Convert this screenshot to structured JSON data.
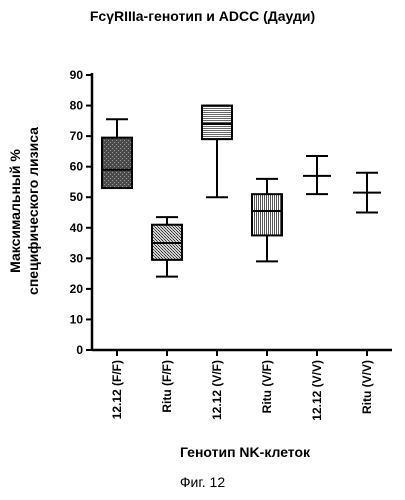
{
  "chart_data": {
    "type": "box",
    "title": "FcγRIIIa-генотип и ADCC (Дауди)",
    "ylabel_lines": [
      "Максимальный %",
      "специфического лизиса"
    ],
    "xlabel": "Генотип NK-клеток",
    "ylim": [
      0,
      90
    ],
    "yticks": [
      0,
      10,
      20,
      30,
      40,
      50,
      60,
      70,
      80,
      90
    ],
    "categories": [
      "12.12 (F/F)",
      "Ritu (F/F)",
      "12.12 (V/F)",
      "Ritu (V/F)",
      "12.12 (V/V)",
      "Ritu (V/V)"
    ],
    "boxes": [
      {
        "min": 53,
        "q1": 53,
        "median": 59,
        "q3": 69.5,
        "max": 75.5,
        "fill": "#555555"
      },
      {
        "min": 24,
        "q1": 29.5,
        "median": 35,
        "q3": 41,
        "max": 43.5,
        "fill": "#9a9a9a"
      },
      {
        "min": 50,
        "q1": 69,
        "median": 74,
        "q3": 80,
        "max": 80,
        "fill": "#bbbbbb"
      },
      {
        "min": 29,
        "q1": 37.5,
        "median": 45.5,
        "q3": 51,
        "max": 56,
        "fill": "#c8c8c8"
      },
      {
        "min": 51,
        "q1": 57,
        "median": 57,
        "q3": 57,
        "max": 63.5,
        "fill": "#ffffff"
      },
      {
        "min": 45,
        "q1": 51.5,
        "median": 51.5,
        "q3": 51.5,
        "max": 58,
        "fill": "#ffffff"
      }
    ]
  },
  "figure_caption": "Фиг. 12"
}
